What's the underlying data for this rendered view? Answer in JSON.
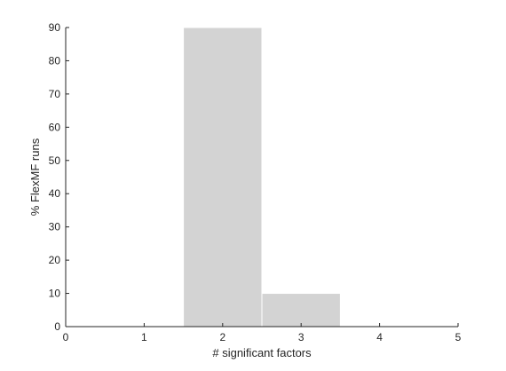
{
  "chart_data": {
    "type": "bar",
    "bar_style": "histogram",
    "categories": [
      2,
      3
    ],
    "values": [
      90,
      10
    ],
    "bar_width": 1,
    "bar_color": "#d3d3d3",
    "xlabel": "# significant factors",
    "ylabel": "% FlexMF runs",
    "xlim": [
      0,
      5
    ],
    "ylim": [
      0,
      90
    ],
    "xticks": [
      0,
      1,
      2,
      3,
      4,
      5
    ],
    "yticks": [
      0,
      10,
      20,
      30,
      40,
      50,
      60,
      70,
      80,
      90
    ],
    "grid": false,
    "box": false,
    "axis_color": "#262626"
  }
}
